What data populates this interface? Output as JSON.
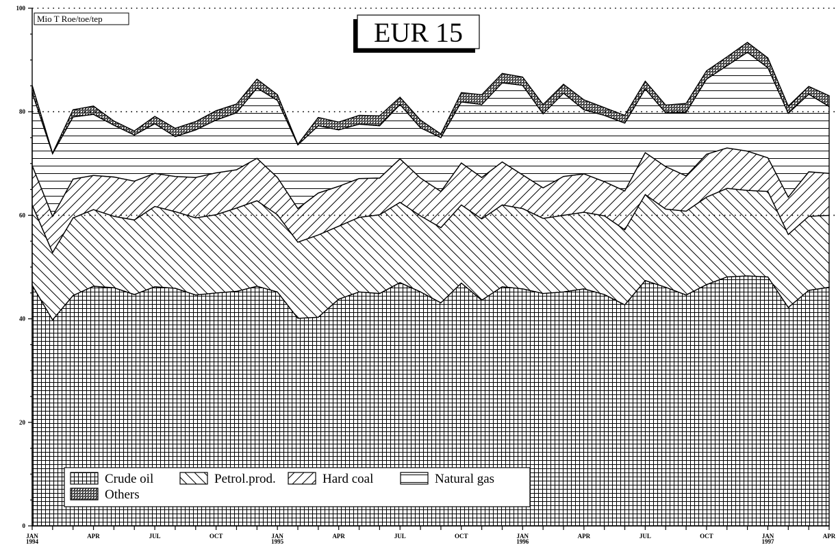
{
  "chart_data": {
    "type": "area",
    "stacked": true,
    "title": "EUR 15",
    "unit_label": "Mio T Roe/toe/tep",
    "ylim": [
      0,
      100
    ],
    "y_ticks": [
      0,
      20,
      40,
      60,
      80,
      100
    ],
    "y_minor_step": 5,
    "grid": {
      "dotted_lines_at": [
        60,
        80,
        100
      ]
    },
    "legend_position": "bottom-left",
    "x": [
      "1994-01",
      "1994-02",
      "1994-03",
      "1994-04",
      "1994-05",
      "1994-06",
      "1994-07",
      "1994-08",
      "1994-09",
      "1994-10",
      "1994-11",
      "1994-12",
      "1995-01",
      "1995-02",
      "1995-03",
      "1995-04",
      "1995-05",
      "1995-06",
      "1995-07",
      "1995-08",
      "1995-09",
      "1995-10",
      "1995-11",
      "1995-12",
      "1996-01",
      "1996-02",
      "1996-03",
      "1996-04",
      "1996-05",
      "1996-06",
      "1996-07",
      "1996-08",
      "1996-09",
      "1996-10",
      "1996-11",
      "1996-12",
      "1997-01",
      "1997-02",
      "1997-03",
      "1997-04"
    ],
    "x_tick_labels": [
      {
        "index": 0,
        "label": "JAN",
        "sub": "1994"
      },
      {
        "index": 3,
        "label": "APR",
        "sub": ""
      },
      {
        "index": 6,
        "label": "JUL",
        "sub": ""
      },
      {
        "index": 9,
        "label": "OCT",
        "sub": ""
      },
      {
        "index": 12,
        "label": "JAN",
        "sub": "1995"
      },
      {
        "index": 15,
        "label": "APR",
        "sub": ""
      },
      {
        "index": 18,
        "label": "JUL",
        "sub": ""
      },
      {
        "index": 21,
        "label": "OCT",
        "sub": ""
      },
      {
        "index": 24,
        "label": "JAN",
        "sub": "1996"
      },
      {
        "index": 27,
        "label": "APR",
        "sub": ""
      },
      {
        "index": 30,
        "label": "JUL",
        "sub": ""
      },
      {
        "index": 33,
        "label": "OCT",
        "sub": ""
      },
      {
        "index": 36,
        "label": "JAN",
        "sub": "1997"
      },
      {
        "index": 39,
        "label": "APR",
        "sub": ""
      }
    ],
    "cumulative": true,
    "series": [
      {
        "name": "Crude oil",
        "pattern": "grid",
        "values": [
          46.5,
          39.8,
          44.5,
          46.3,
          46.0,
          44.7,
          46.2,
          45.9,
          44.6,
          45.0,
          45.3,
          46.3,
          45.2,
          40.1,
          40.3,
          43.8,
          45.2,
          44.9,
          47.0,
          45.2,
          43.1,
          46.9,
          43.6,
          46.2,
          45.8,
          44.9,
          45.2,
          45.8,
          44.7,
          42.7,
          47.4,
          46.1,
          44.6,
          46.6,
          48.1,
          48.3,
          48.1,
          42.2,
          45.5,
          46.1
        ]
      },
      {
        "name": "Petrol.prod.",
        "pattern": "backslash",
        "values": [
          62.0,
          52.8,
          59.5,
          61.1,
          59.8,
          59.1,
          61.7,
          60.7,
          59.5,
          60.1,
          61.4,
          62.8,
          60.1,
          54.8,
          56.2,
          57.9,
          59.6,
          60.1,
          62.5,
          59.9,
          57.6,
          62.0,
          59.3,
          62.0,
          61.3,
          59.4,
          60.0,
          60.6,
          59.9,
          57.2,
          64.0,
          61.2,
          60.8,
          63.5,
          65.2,
          64.8,
          64.6,
          56.3,
          59.8,
          60.0
        ]
      },
      {
        "name": "Hard coal",
        "pattern": "slash",
        "values": [
          69.6,
          59.8,
          67.0,
          67.7,
          67.4,
          66.6,
          68.1,
          67.5,
          67.3,
          68.2,
          68.8,
          71.0,
          67.3,
          61.3,
          64.3,
          65.6,
          67.1,
          67.2,
          70.9,
          67.2,
          64.6,
          70.1,
          67.3,
          70.3,
          67.8,
          65.3,
          67.5,
          68.0,
          66.5,
          64.7,
          72.1,
          69.4,
          67.6,
          71.8,
          73.0,
          72.4,
          71.1,
          63.5,
          68.4,
          68.1
        ]
      },
      {
        "name": "Natural gas",
        "pattern": "horizontal",
        "values": [
          83.7,
          71.9,
          79.0,
          79.5,
          77.4,
          75.5,
          77.7,
          75.2,
          76.5,
          78.4,
          79.8,
          84.6,
          82.2,
          73.6,
          77.3,
          76.5,
          77.6,
          77.3,
          81.4,
          76.9,
          75.0,
          81.9,
          81.4,
          85.6,
          85.1,
          79.6,
          83.6,
          80.4,
          79.3,
          77.8,
          84.4,
          79.8,
          79.9,
          86.3,
          88.9,
          91.5,
          88.5,
          79.7,
          83.4,
          81.0
        ]
      },
      {
        "name": "Others",
        "pattern": "dense",
        "values": [
          85.1,
          72.0,
          80.4,
          81.1,
          78.2,
          76.3,
          79.1,
          76.8,
          78.1,
          80.2,
          81.5,
          86.3,
          83.3,
          73.7,
          78.9,
          78.0,
          79.3,
          79.2,
          82.8,
          78.4,
          75.7,
          83.7,
          83.3,
          87.4,
          86.7,
          81.4,
          85.3,
          82.3,
          80.8,
          79.3,
          85.9,
          81.3,
          81.6,
          87.9,
          90.6,
          93.4,
          90.4,
          81.1,
          84.9,
          83.1
        ]
      }
    ]
  }
}
